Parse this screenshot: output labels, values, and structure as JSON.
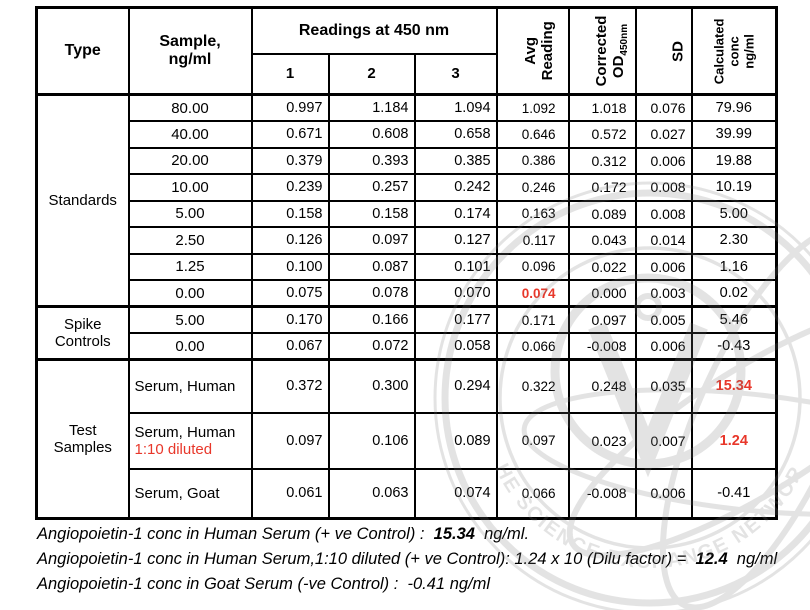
{
  "colors": {
    "accent_red": "#e8372a",
    "border_black": "#000000",
    "watermark_gray": "#7a7a7a"
  },
  "watermark": {
    "text": "THE SCIENCE EXCHANGE NETWORK",
    "emblem": "V"
  },
  "header": {
    "type": "Type",
    "sample_l1": "Sample,",
    "sample_l2": "ng/ml",
    "readings": "Readings at 450 nm",
    "r1": "1",
    "r2": "2",
    "r3": "3",
    "avg_l1": "Avg",
    "avg_l2": "Reading",
    "corr_l1": "Corrected",
    "corr_l2": "OD",
    "corr_sub": "450nm",
    "sd": "SD",
    "calc_l1": "Calculated",
    "calc_l2": "conc",
    "calc_l3": "ng/ml"
  },
  "table": {
    "sections": [
      {
        "type_label": "Standards",
        "rows": [
          {
            "sample": "80.00",
            "values": [
              "0.997",
              "1.184",
              "1.094",
              "1.092",
              "1.018",
              "0.076",
              "79.96"
            ],
            "red": []
          },
          {
            "sample": "40.00",
            "values": [
              "0.671",
              "0.608",
              "0.658",
              "0.646",
              "0.572",
              "0.027",
              "39.99"
            ],
            "red": []
          },
          {
            "sample": "20.00",
            "values": [
              "0.379",
              "0.393",
              "0.385",
              "0.386",
              "0.312",
              "0.006",
              "19.88"
            ],
            "red": []
          },
          {
            "sample": "10.00",
            "values": [
              "0.239",
              "0.257",
              "0.242",
              "0.246",
              "0.172",
              "0.008",
              "10.19"
            ],
            "red": []
          },
          {
            "sample": "5.00",
            "values": [
              "0.158",
              "0.158",
              "0.174",
              "0.163",
              "0.089",
              "0.008",
              "5.00"
            ],
            "red": []
          },
          {
            "sample": "2.50",
            "values": [
              "0.126",
              "0.097",
              "0.127",
              "0.117",
              "0.043",
              "0.014",
              "2.30"
            ],
            "red": []
          },
          {
            "sample": "1.25",
            "values": [
              "0.100",
              "0.087",
              "0.101",
              "0.096",
              "0.022",
              "0.006",
              "1.16"
            ],
            "red": []
          },
          {
            "sample": "0.00",
            "values": [
              "0.075",
              "0.078",
              "0.070",
              "0.074",
              "0.000",
              "0.003",
              "0.02"
            ],
            "red": [
              3
            ]
          }
        ]
      },
      {
        "type_label": "Spike Controls",
        "rows": [
          {
            "sample": "5.00",
            "values": [
              "0.170",
              "0.166",
              "0.177",
              "0.171",
              "0.097",
              "0.005",
              "5.46"
            ],
            "red": []
          },
          {
            "sample": "0.00",
            "values": [
              "0.067",
              "0.072",
              "0.058",
              "0.066",
              "-0.008",
              "0.006",
              "-0.43"
            ],
            "red": []
          }
        ]
      },
      {
        "type_label": "Test Samples",
        "rows": [
          {
            "sample": "Serum, Human",
            "values": [
              "0.372",
              "0.300",
              "0.294",
              "0.322",
              "0.248",
              "0.035",
              "15.34"
            ],
            "red": [
              6
            ]
          },
          {
            "sample": "Serum, Human",
            "sample2": "1:10 diluted",
            "values": [
              "0.097",
              "0.106",
              "0.089",
              "0.097",
              "0.023",
              "0.007",
              "1.24"
            ],
            "red": [
              6
            ]
          },
          {
            "sample": "Serum, Goat",
            "values": [
              "0.061",
              "0.063",
              "0.074",
              "0.066",
              "-0.008",
              "0.006",
              "-0.41"
            ],
            "red": []
          }
        ]
      }
    ]
  },
  "footnotes": [
    {
      "pre": "Angiopoietin-1 conc in Human Serum (+ ve Control) :  ",
      "bold": "15.34",
      "post": "  ng/ml."
    },
    {
      "pre": "Angiopoietin-1 conc in Human Serum,1:10 diluted (+ ve Control): 1.24 x 10 (Dilu factor) =  ",
      "bold": "12.4",
      "post": "  ng/ml"
    },
    {
      "pre": "Angiopoietin-1 conc in Goat Serum (-ve Control) :  -0.41 ng/ml",
      "bold": "",
      "post": ""
    }
  ]
}
